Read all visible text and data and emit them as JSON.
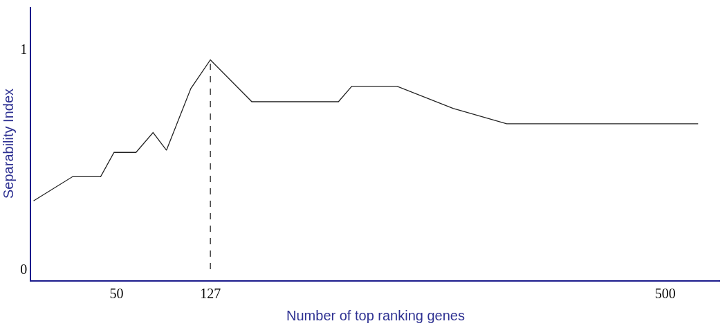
{
  "chart_data": {
    "type": "line",
    "xlabel": "Number of top ranking genes",
    "ylabel": "Separability Index",
    "xlim": [
      -20,
      545
    ],
    "ylim": [
      -0.05,
      1.19
    ],
    "xticks": [
      50,
      127,
      500
    ],
    "yticks": [
      0,
      1
    ],
    "marker": "none",
    "series": [
      {
        "color": "#222222",
        "line_style": "solid",
        "x": [
          -18,
          14,
          37,
          48,
          66,
          80,
          91,
          111,
          127,
          161,
          232,
          243,
          280,
          326,
          370,
          527
        ],
        "values": [
          0.31,
          0.42,
          0.42,
          0.53,
          0.53,
          0.62,
          0.54,
          0.82,
          0.95,
          0.76,
          0.76,
          0.83,
          0.83,
          0.73,
          0.66,
          0.66
        ]
      }
    ],
    "ref_lines": [
      {
        "axis": "x",
        "value": 127,
        "color": "#222222",
        "line_style": "dashed"
      }
    ]
  }
}
